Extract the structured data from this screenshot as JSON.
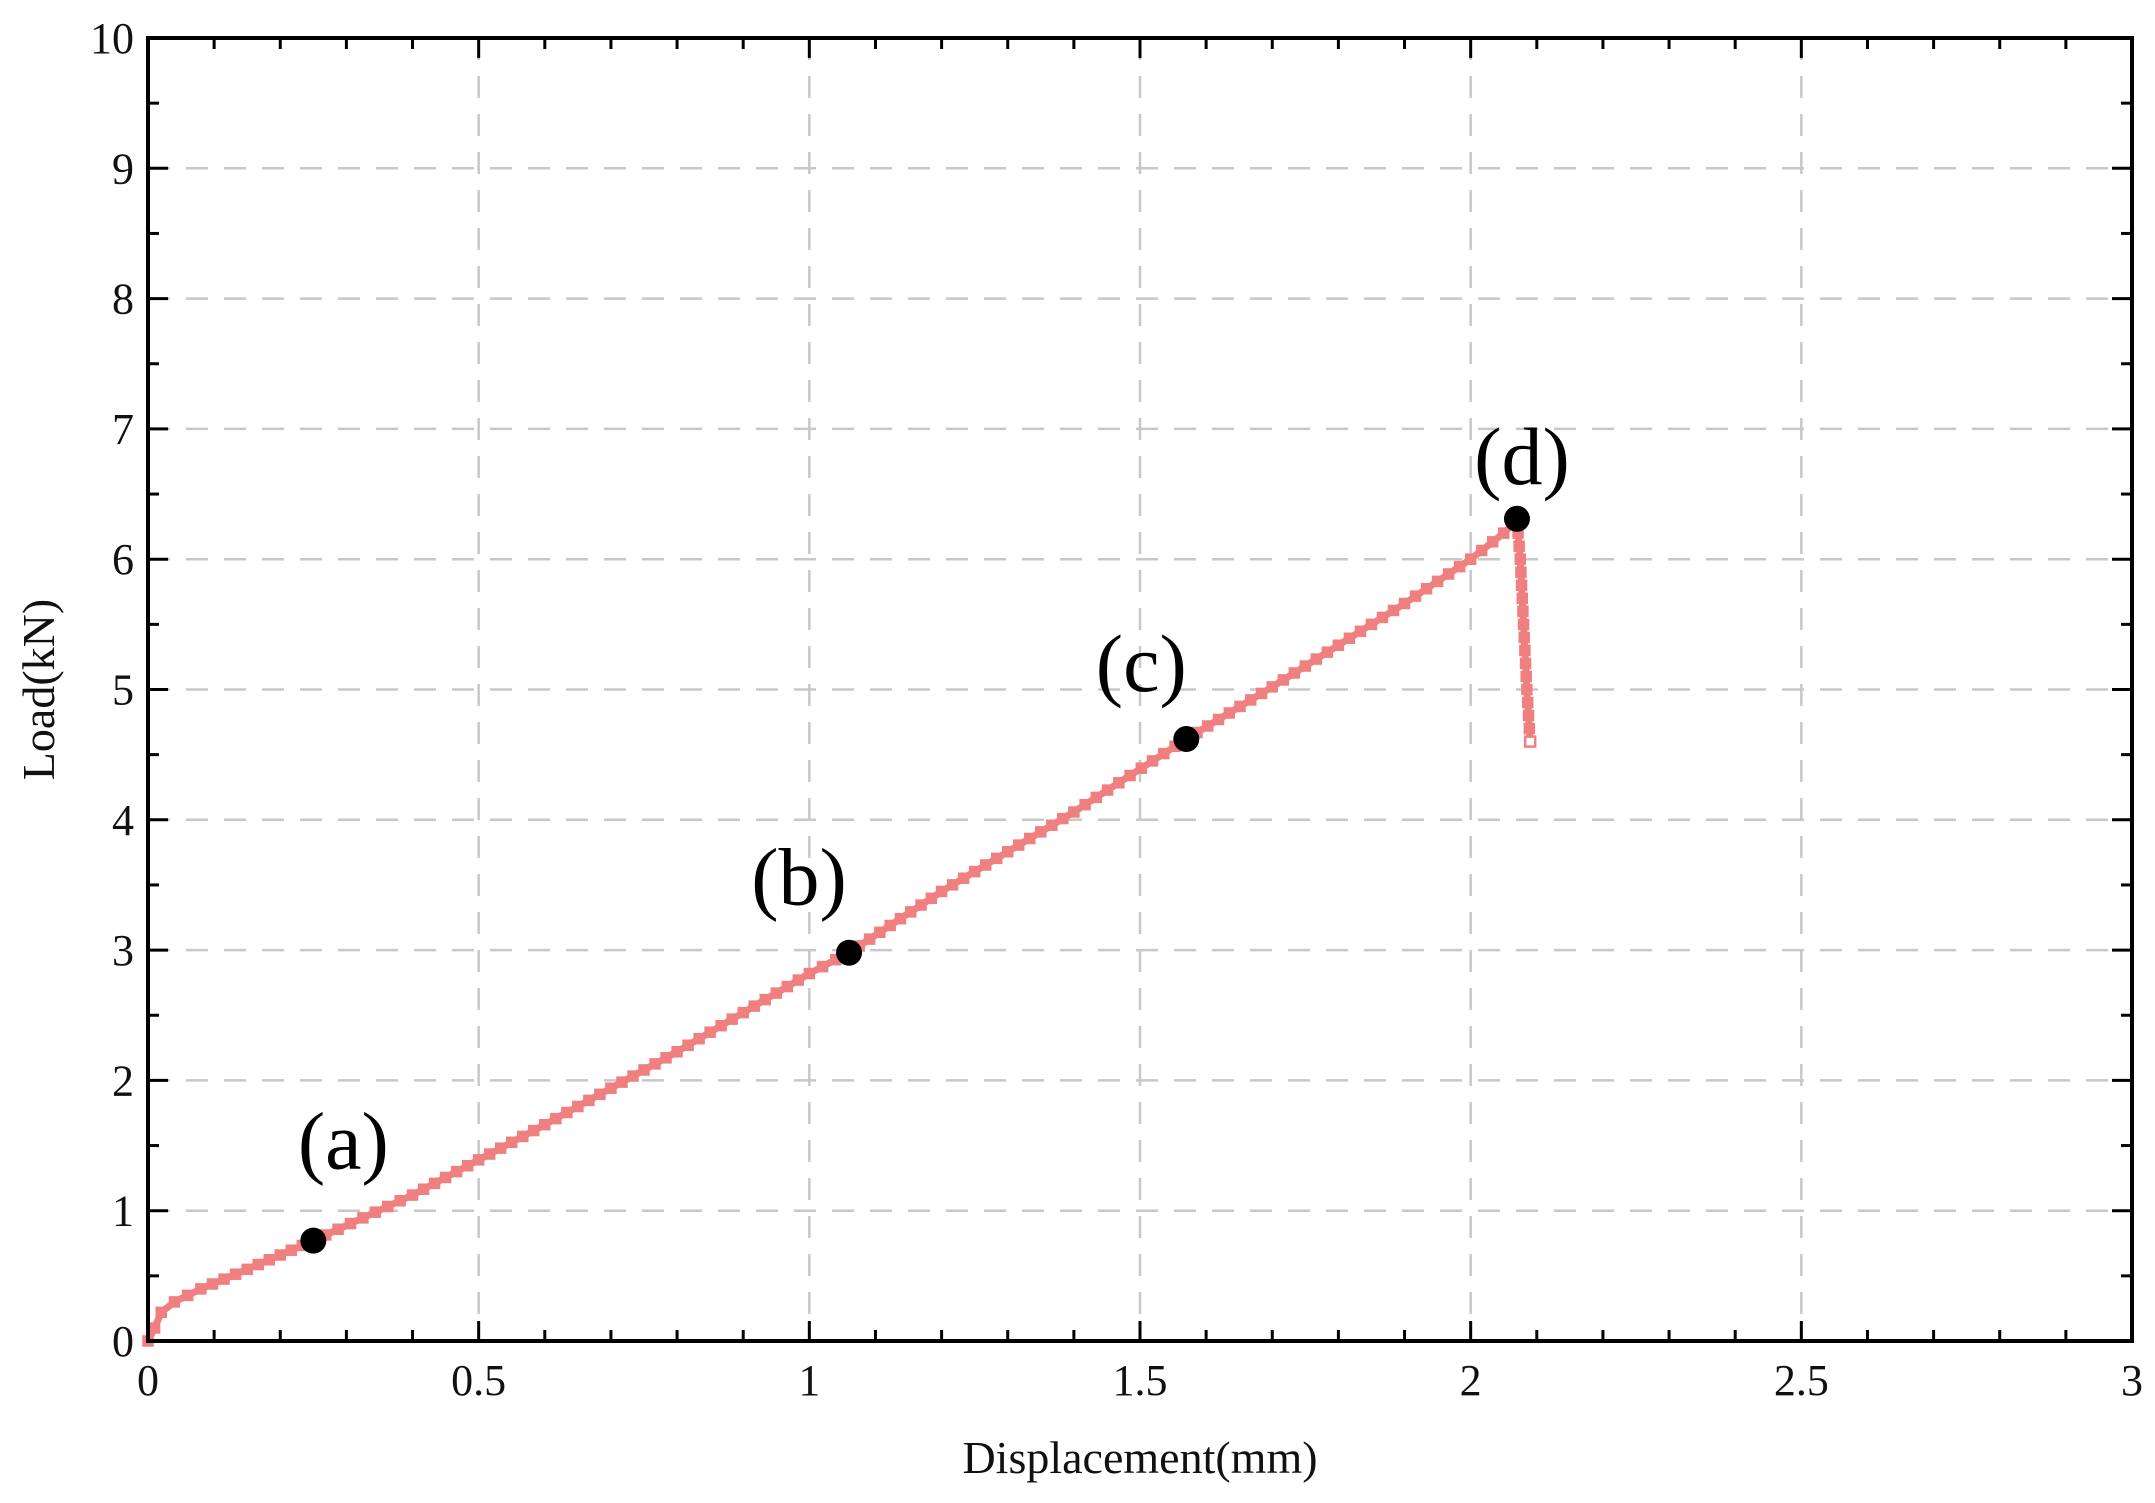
{
  "chart_data": {
    "type": "line",
    "title": "",
    "xlabel": "Displacement(mm)",
    "ylabel": "Load(kN)",
    "xlim": [
      0,
      3
    ],
    "ylim": [
      0,
      10
    ],
    "xticks": [
      0,
      0.5,
      1,
      1.5,
      2,
      2.5,
      3
    ],
    "xtick_labels": [
      "0",
      "0.5",
      "1",
      "1.5",
      "2",
      "2.5",
      "3"
    ],
    "yticks": [
      0,
      1,
      2,
      3,
      4,
      5,
      6,
      7,
      8,
      9,
      10
    ],
    "ytick_labels": [
      "0",
      "1",
      "2",
      "3",
      "4",
      "5",
      "6",
      "7",
      "8",
      "9",
      "10"
    ],
    "grid": true,
    "grid_style": "dashed",
    "series": [
      {
        "color": "#f08080",
        "marker": "square",
        "x": [
          0,
          0.01,
          0.02,
          0.04,
          0.08,
          0.15,
          0.25,
          0.4,
          0.6,
          0.8,
          1.0,
          1.06,
          1.2,
          1.4,
          1.57,
          1.7,
          1.9,
          2.0,
          2.05,
          2.07,
          2.075,
          2.08,
          2.085,
          2.09
        ],
        "y": [
          0,
          0.1,
          0.22,
          0.3,
          0.4,
          0.55,
          0.77,
          1.12,
          1.66,
          2.22,
          2.82,
          2.98,
          3.45,
          4.06,
          4.62,
          5.02,
          5.66,
          6.0,
          6.2,
          6.3,
          6.0,
          5.5,
          5.0,
          4.6
        ]
      }
    ],
    "annotations": [
      {
        "label": "(a)",
        "x": 0.25,
        "y": 0.77
      },
      {
        "label": "(b)",
        "x": 1.06,
        "y": 2.98
      },
      {
        "label": "(c)",
        "x": 1.57,
        "y": 4.62
      },
      {
        "label": "(d)",
        "x": 2.07,
        "y": 6.31
      }
    ],
    "colors": {
      "series": "#f08080",
      "points": "#000000",
      "grid": "#c8c8c8",
      "axes": "#000000"
    }
  }
}
